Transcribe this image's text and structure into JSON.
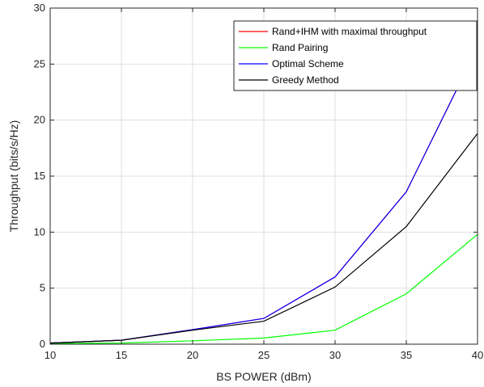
{
  "chart_data": {
    "type": "line",
    "title": "",
    "xlabel": "BS POWER (dBm)",
    "ylabel": "Throughput (bits/s/Hz)",
    "xlim": [
      10,
      40
    ],
    "ylim": [
      0,
      30
    ],
    "xticks": [
      10,
      15,
      20,
      25,
      30,
      35,
      40
    ],
    "yticks": [
      0,
      5,
      10,
      15,
      20,
      25,
      30
    ],
    "grid": true,
    "legend_position": "top-right",
    "x": [
      10,
      15,
      20,
      25,
      30,
      35,
      40
    ],
    "series": [
      {
        "name": "Rand+IHM with maximal throughput",
        "color": "#ff0000",
        "values": [
          0.1,
          0.35,
          1.3,
          2.3,
          6.0,
          13.6,
          26.5
        ]
      },
      {
        "name": "Rand Pairing",
        "color": "#00ff00",
        "values": [
          0.05,
          0.1,
          0.3,
          0.55,
          1.25,
          4.5,
          9.8
        ]
      },
      {
        "name": "Optimal Scheme",
        "color": "#0000ff",
        "values": [
          0.1,
          0.35,
          1.3,
          2.3,
          6.0,
          13.6,
          26.5
        ]
      },
      {
        "name": "Greedy Method",
        "color": "#000000",
        "values": [
          0.1,
          0.35,
          1.25,
          2.05,
          5.1,
          10.5,
          18.8
        ]
      }
    ]
  }
}
